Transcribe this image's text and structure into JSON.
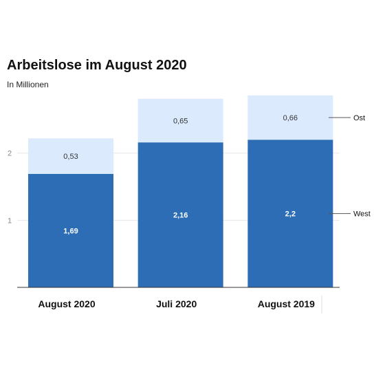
{
  "chart_data": {
    "type": "bar",
    "stacked": true,
    "title": "Arbeitslose im August 2020",
    "subtitle": "In Millionen",
    "categories": [
      "August 2020",
      "Juli 2020",
      "August 2019"
    ],
    "series": [
      {
        "name": "West",
        "values": [
          1.69,
          2.16,
          2.2
        ],
        "labels": [
          "1,69",
          "2,16",
          "2,2"
        ],
        "color": "#2d6db5"
      },
      {
        "name": "Ost",
        "values": [
          0.53,
          0.65,
          0.66
        ],
        "labels": [
          "0,53",
          "0,65",
          "0,66"
        ],
        "color": "#dbeafd"
      }
    ],
    "yticks": [
      {
        "value": 1,
        "label": "1"
      },
      {
        "value": 2,
        "label": "2"
      }
    ],
    "ylim": [
      0,
      2.95
    ],
    "grid": true,
    "legend": "right",
    "colors": {
      "gridline": "#e6e6e6",
      "axis": "#333333",
      "legend_line": "#555555"
    }
  }
}
